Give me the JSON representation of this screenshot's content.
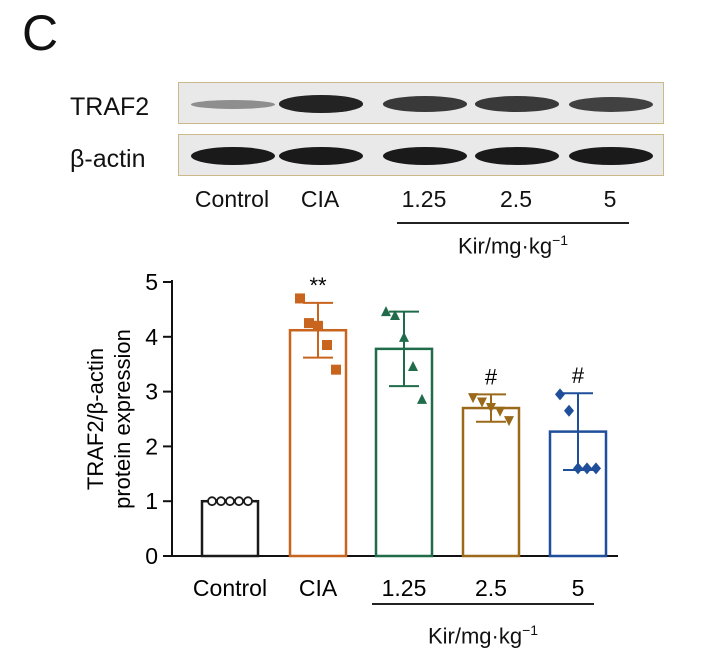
{
  "panel_letter": "C",
  "blot": {
    "rows": [
      {
        "label": "TRAF2",
        "band_intensity": [
          0.25,
          0.95,
          0.8,
          0.8,
          0.75
        ]
      },
      {
        "label": "β-actin",
        "band_intensity": [
          1.0,
          1.0,
          1.0,
          1.0,
          1.0
        ]
      }
    ],
    "lanes": [
      "Control",
      "CIA",
      "1.25",
      "2.5",
      "5"
    ],
    "group_label_main": "Kir/mg·kg",
    "group_label_exp": "−1"
  },
  "chart_data": {
    "type": "bar",
    "categories": [
      "Control",
      "CIA",
      "1.25",
      "2.5",
      "5"
    ],
    "values": [
      1.0,
      4.12,
      3.78,
      2.7,
      2.27
    ],
    "errors": [
      0.0,
      0.5,
      0.68,
      0.25,
      0.7
    ],
    "points": [
      [
        1.0,
        1.0,
        1.0,
        1.0,
        1.0
      ],
      [
        4.7,
        4.25,
        4.2,
        3.85,
        3.4
      ],
      [
        4.45,
        4.38,
        3.98,
        3.45,
        2.85
      ],
      [
        2.9,
        2.82,
        2.72,
        2.65,
        2.48
      ],
      [
        2.95,
        2.65,
        1.6,
        1.6,
        1.6
      ]
    ],
    "markers": [
      "circle",
      "square",
      "triangle-up",
      "triangle-down",
      "diamond"
    ],
    "colors": [
      "#1a1a1a",
      "#c8641e",
      "#1f6b4a",
      "#9a6a1a",
      "#1f4f9a"
    ],
    "significance": [
      "",
      "**",
      "",
      "#",
      "#"
    ],
    "ylabel_line1": "TRAF2/β-actin",
    "ylabel_line2": "protein expression",
    "ylim": [
      0,
      5
    ],
    "yticks": [
      0,
      1,
      2,
      3,
      4,
      5
    ],
    "group_label_main": "Kir/mg·kg",
    "group_label_exp": "−1"
  }
}
